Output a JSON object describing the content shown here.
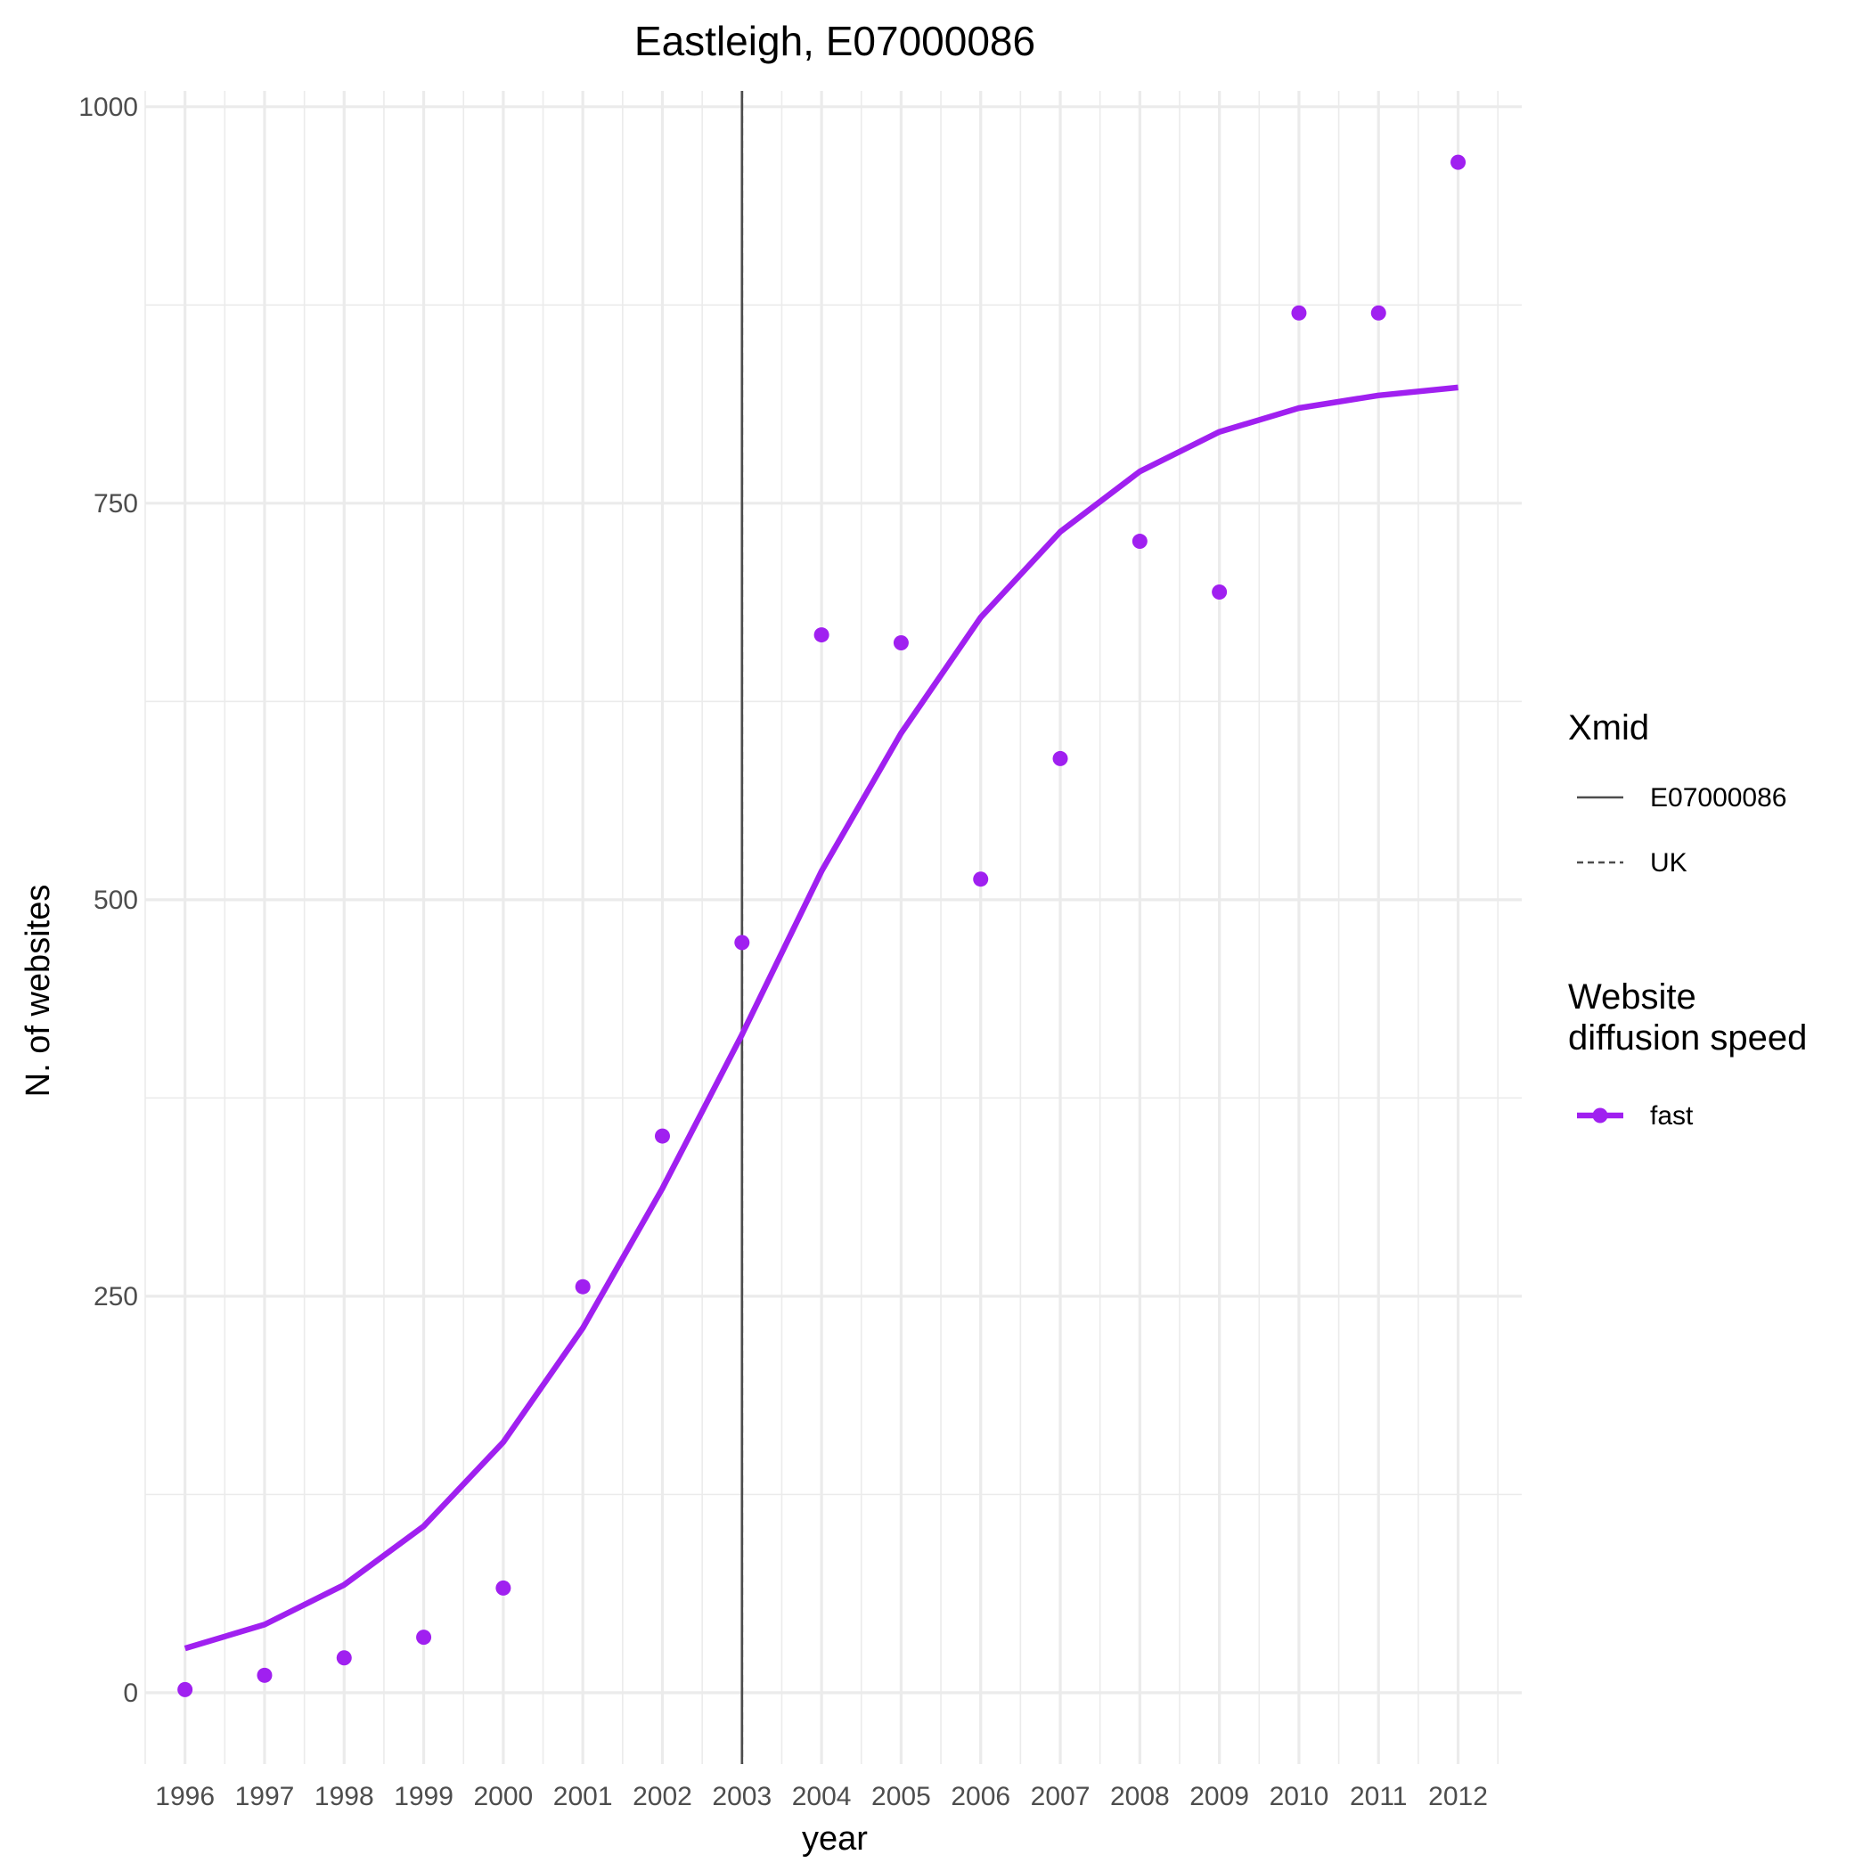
{
  "chart_data": {
    "type": "line",
    "title": "Eastleigh, E07000086",
    "xlabel": "year",
    "ylabel": "N. of websites",
    "x": [
      1996,
      1997,
      1998,
      1999,
      2000,
      2001,
      2002,
      2003,
      2004,
      2005,
      2006,
      2007,
      2008,
      2009,
      2010,
      2011,
      2012
    ],
    "x_tick_labels": [
      "1996",
      "1997",
      "1998",
      "1999",
      "2000",
      "2001",
      "2002",
      "2003",
      "2004",
      "2005",
      "2006",
      "2007",
      "2008",
      "2009",
      "2010",
      "2011",
      "2012"
    ],
    "y_ticks": [
      0,
      250,
      500,
      750,
      1000
    ],
    "y_tick_labels": [
      "0",
      "250",
      "500",
      "750",
      "1000"
    ],
    "xlim": [
      1995.5,
      2012.8
    ],
    "ylim": [
      -45,
      1010
    ],
    "grid": true,
    "series": [
      {
        "name": "fast",
        "color": "#a020f0",
        "fitted": [
          28,
          43,
          68,
          105,
          158,
          230,
          318,
          415,
          518,
          605,
          678,
          732,
          770,
          795,
          810,
          818,
          823
        ],
        "observed": [
          2,
          11,
          22,
          35,
          66,
          256,
          351,
          473,
          667,
          662,
          513,
          589,
          726,
          694,
          870,
          870,
          965
        ]
      }
    ],
    "vlines": [
      {
        "name": "E07000086",
        "x": 2003,
        "style": "solid"
      },
      {
        "name": "UK",
        "x": 2003,
        "style": "dashed"
      }
    ],
    "legend": {
      "placement": "right",
      "groups": [
        {
          "title_lines": [
            "Xmid"
          ],
          "entries": [
            "E07000086",
            "UK"
          ]
        },
        {
          "title_lines": [
            "Website",
            "diffusion speed"
          ],
          "entries": [
            "fast"
          ]
        }
      ]
    },
    "colors": {
      "series": "#a020f0",
      "vline": "#4d4d4d",
      "grid": "#ebebeb",
      "tick_text": "#4d4d4d"
    }
  }
}
